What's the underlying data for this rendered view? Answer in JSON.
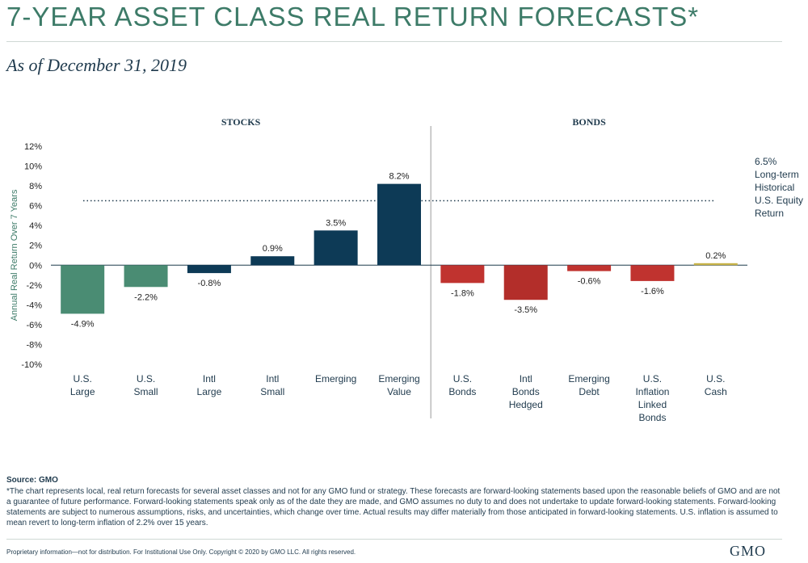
{
  "header": {
    "title": "7-YEAR ASSET CLASS REAL RETURN FORECASTS*",
    "subtitle": "As of December 31, 2019"
  },
  "chart_data": {
    "type": "bar",
    "ylabel": "Annual Real Return Over 7 Years",
    "ylim": [
      -10,
      12
    ],
    "yticks": [
      12,
      10,
      8,
      6,
      4,
      2,
      0,
      -2,
      -4,
      -6,
      -8,
      -10
    ],
    "ytick_labels": [
      "12%",
      "10%",
      "8%",
      "6%",
      "4%",
      "2%",
      "0%",
      "-2%",
      "-4%",
      "-6%",
      "-8%",
      "-10%"
    ],
    "groups": [
      {
        "label": "STOCKS",
        "start": 0,
        "end": 5
      },
      {
        "label": "BONDS",
        "start": 6,
        "end": 10
      }
    ],
    "categories": [
      [
        "U.S.",
        "Large"
      ],
      [
        "U.S.",
        "Small"
      ],
      [
        "Intl",
        "Large"
      ],
      [
        "Intl",
        "Small"
      ],
      [
        "Emerging"
      ],
      [
        "Emerging",
        "Value"
      ],
      [
        "U.S.",
        "Bonds"
      ],
      [
        "Intl",
        "Bonds",
        "Hedged"
      ],
      [
        "Emerging",
        "Debt"
      ],
      [
        "U.S.",
        "Inflation",
        "Linked",
        "Bonds"
      ],
      [
        "U.S.",
        "Cash"
      ]
    ],
    "values": [
      -4.9,
      -2.2,
      -0.8,
      0.9,
      3.5,
      8.2,
      -1.8,
      -3.5,
      -0.6,
      -1.6,
      0.2
    ],
    "value_labels": [
      "-4.9%",
      "-2.2%",
      "-0.8%",
      "0.9%",
      "3.5%",
      "8.2%",
      "-1.8%",
      "-3.5%",
      "-0.6%",
      "-1.6%",
      "0.2%"
    ],
    "bar_colors": [
      "#4a8c73",
      "#4a8c73",
      "#0d3a56",
      "#0d3a56",
      "#0d3a56",
      "#0d3a56",
      "#c0332f",
      "#b32e2a",
      "#c0332f",
      "#c0332f",
      "#c9b44a"
    ],
    "reference_line": {
      "value": 6.5,
      "label_lines": [
        "6.5%",
        "Long-term",
        "Historical",
        "U.S. Equity",
        "Return"
      ]
    }
  },
  "footer": {
    "source": "Source: GMO",
    "footnote": "*The chart represents local, real return forecasts for several asset classes and not for any GMO fund or strategy. These forecasts are forward-looking statements based upon the reasonable beliefs of GMO and are not a guarantee of future performance. Forward-looking statements speak only as of the date they are made, and GMO assumes no duty to and does not undertake to update forward-looking statements. Forward-looking statements are subject to numerous assumptions, risks, and uncertainties, which change over time. Actual results may differ materially from those anticipated in forward-looking statements. U.S. inflation is assumed to mean revert to long-term inflation of 2.2% over 15 years.",
    "disclaimer": "Proprietary information—not for distribution. For Institutional Use Only. Copyright © 2020 by GMO LLC. All rights reserved.",
    "logo": "GMO"
  }
}
